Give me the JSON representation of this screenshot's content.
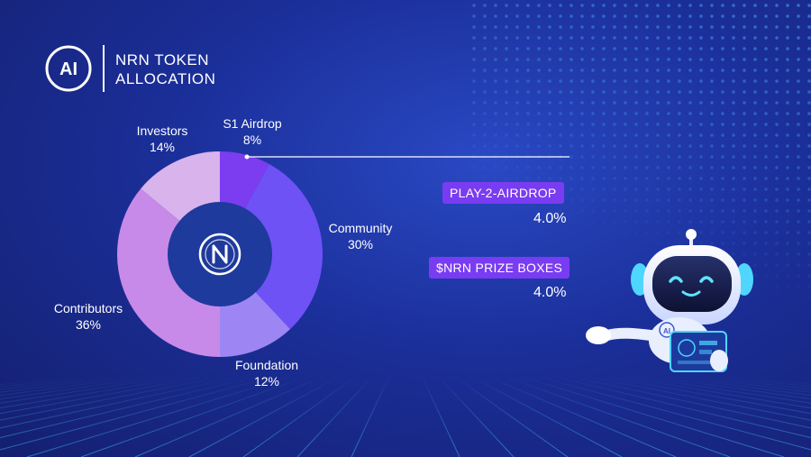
{
  "header": {
    "logo_text": "AI",
    "title_line1": "NRN TOKEN",
    "title_line2": "ALLOCATION"
  },
  "chart_data": {
    "type": "pie",
    "donut": true,
    "center_icon": "nrn-coin-icon",
    "slices": [
      {
        "label": "S1 Airdrop",
        "value": 8,
        "display": "8%",
        "color": "#7c3cf0"
      },
      {
        "label": "Community",
        "value": 30,
        "display": "30%",
        "color": "#6e52f5"
      },
      {
        "label": "Foundation",
        "value": 12,
        "display": "12%",
        "color": "#9d86f4"
      },
      {
        "label": "Contributors",
        "value": 36,
        "display": "36%",
        "color": "#c78ae8"
      },
      {
        "label": "Investors",
        "value": 14,
        "display": "14%",
        "color": "#d8b3ec"
      }
    ],
    "breakdown": {
      "parent": "S1 Airdrop",
      "items": [
        {
          "label": "PLAY-2-AIRDROP",
          "display": "4.0%",
          "value": 4.0
        },
        {
          "label": "$NRN PRIZE BOXES",
          "display": "4.0%",
          "value": 4.0
        }
      ]
    }
  },
  "colors": {
    "background": "#1b2f9a",
    "donut_hole": "#1e3a9c",
    "tag": "#7a3cf2",
    "robot_accent": "#4fd6ff"
  },
  "robot": {
    "icon": "robot-mascot-icon",
    "chest_text": "AI"
  }
}
